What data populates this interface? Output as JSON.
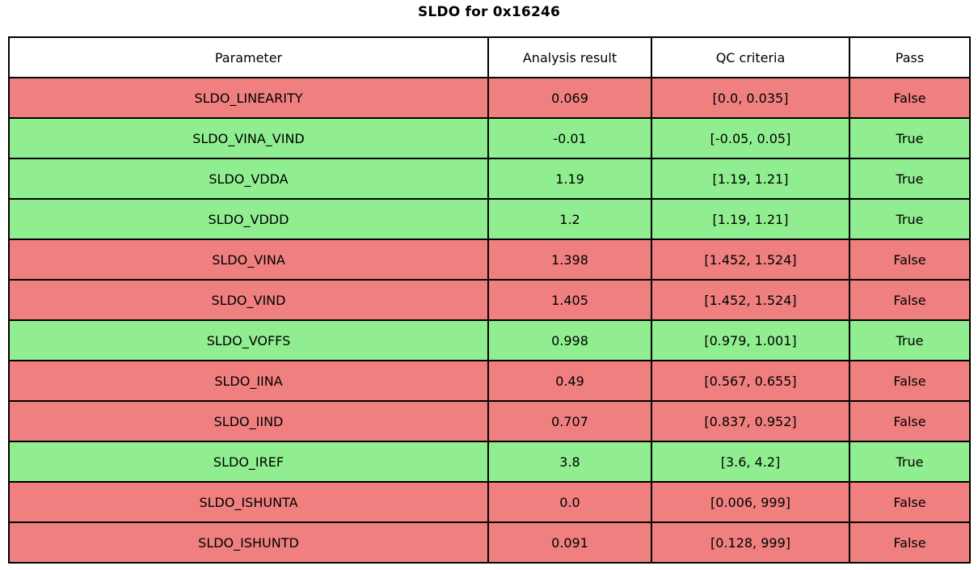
{
  "title": "SLDO for 0x16246",
  "colors": {
    "pass_true_bg": "#90ee90",
    "pass_false_bg": "#f08080",
    "header_bg": "#ffffff",
    "border": "#000000",
    "text": "#000000"
  },
  "chart_data": {
    "type": "table",
    "title": "SLDO for 0x16246",
    "columns": [
      "Parameter",
      "Analysis result",
      "QC criteria",
      "Pass"
    ],
    "rows": [
      {
        "parameter": "SLDO_LINEARITY",
        "analysis_result": "0.069",
        "qc_criteria": "[0.0, 0.035]",
        "pass": "False"
      },
      {
        "parameter": "SLDO_VINA_VIND",
        "analysis_result": "-0.01",
        "qc_criteria": "[-0.05, 0.05]",
        "pass": "True"
      },
      {
        "parameter": "SLDO_VDDA",
        "analysis_result": "1.19",
        "qc_criteria": "[1.19, 1.21]",
        "pass": "True"
      },
      {
        "parameter": "SLDO_VDDD",
        "analysis_result": "1.2",
        "qc_criteria": "[1.19, 1.21]",
        "pass": "True"
      },
      {
        "parameter": "SLDO_VINA",
        "analysis_result": "1.398",
        "qc_criteria": "[1.452, 1.524]",
        "pass": "False"
      },
      {
        "parameter": "SLDO_VIND",
        "analysis_result": "1.405",
        "qc_criteria": "[1.452, 1.524]",
        "pass": "False"
      },
      {
        "parameter": "SLDO_VOFFS",
        "analysis_result": "0.998",
        "qc_criteria": "[0.979, 1.001]",
        "pass": "True"
      },
      {
        "parameter": "SLDO_IINA",
        "analysis_result": "0.49",
        "qc_criteria": "[0.567, 0.655]",
        "pass": "False"
      },
      {
        "parameter": "SLDO_IIND",
        "analysis_result": "0.707",
        "qc_criteria": "[0.837, 0.952]",
        "pass": "False"
      },
      {
        "parameter": "SLDO_IREF",
        "analysis_result": "3.8",
        "qc_criteria": "[3.6, 4.2]",
        "pass": "True"
      },
      {
        "parameter": "SLDO_ISHUNTA",
        "analysis_result": "0.0",
        "qc_criteria": "[0.006, 999]",
        "pass": "False"
      },
      {
        "parameter": "SLDO_ISHUNTD",
        "analysis_result": "0.091",
        "qc_criteria": "[0.128, 999]",
        "pass": "False"
      }
    ]
  }
}
